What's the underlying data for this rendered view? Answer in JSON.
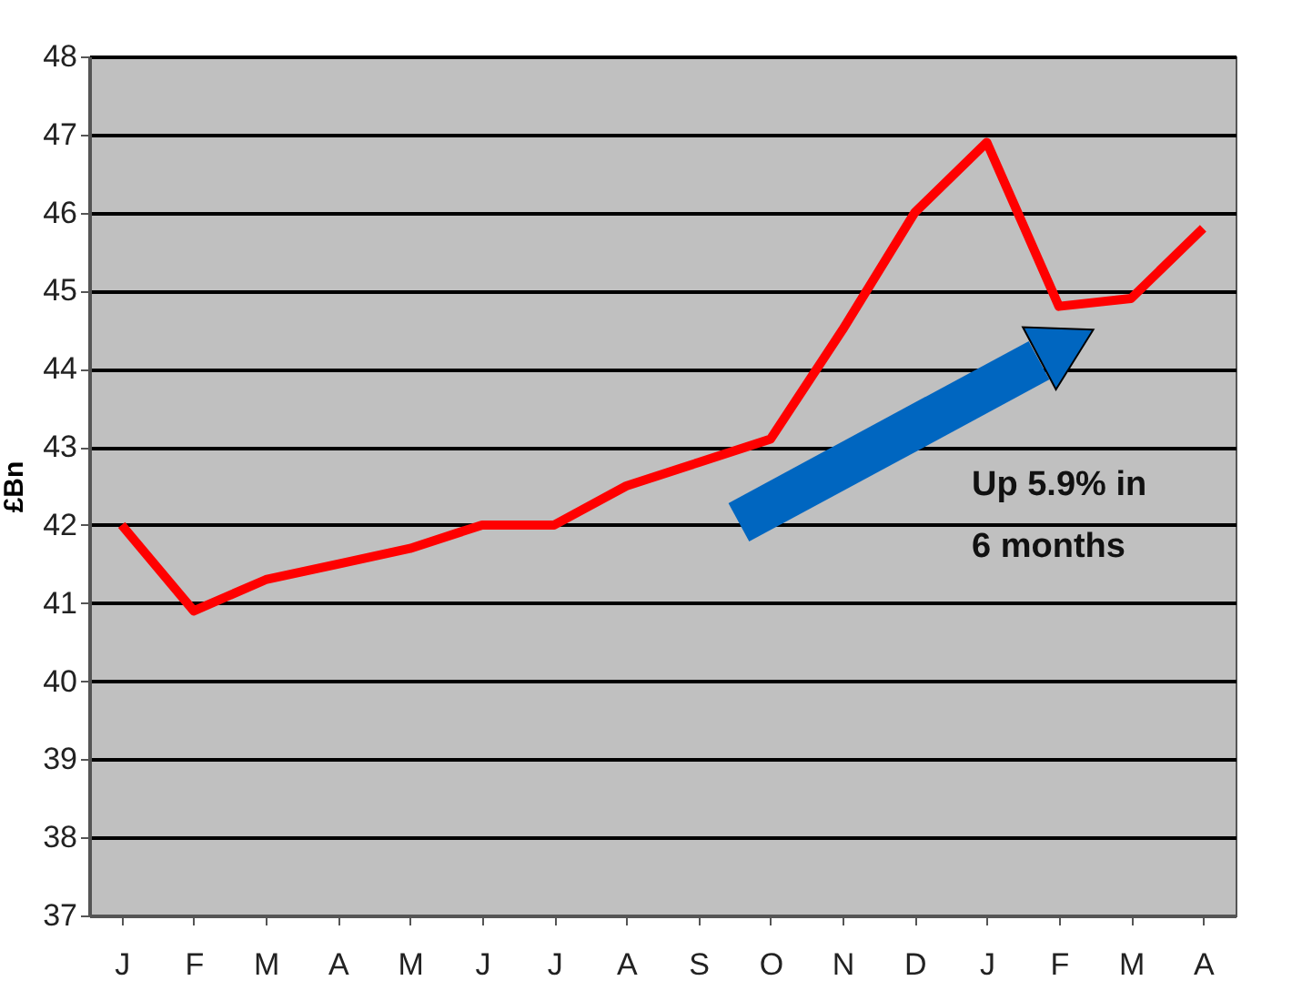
{
  "chart_data": {
    "type": "line",
    "ylabel": "£Bn",
    "categories": [
      "J",
      "F",
      "M",
      "A",
      "M",
      "J",
      "J",
      "A",
      "S",
      "O",
      "N",
      "D",
      "J",
      "F",
      "M",
      "A"
    ],
    "series": [
      {
        "color": "#ff0000",
        "values": [
          42.0,
          40.9,
          41.3,
          41.5,
          41.7,
          42.0,
          42.0,
          42.5,
          42.8,
          43.1,
          44.5,
          46.0,
          46.9,
          44.8,
          44.9,
          45.8
        ]
      }
    ],
    "ylim": [
      37,
      48
    ],
    "yticks": [
      37,
      38,
      39,
      40,
      41,
      42,
      43,
      44,
      45,
      46,
      47,
      48
    ],
    "grid": "y",
    "marker": "none",
    "line_style": "solid",
    "legend": false,
    "annotations": [
      "Up 5.9% in\n6 months"
    ]
  }
}
